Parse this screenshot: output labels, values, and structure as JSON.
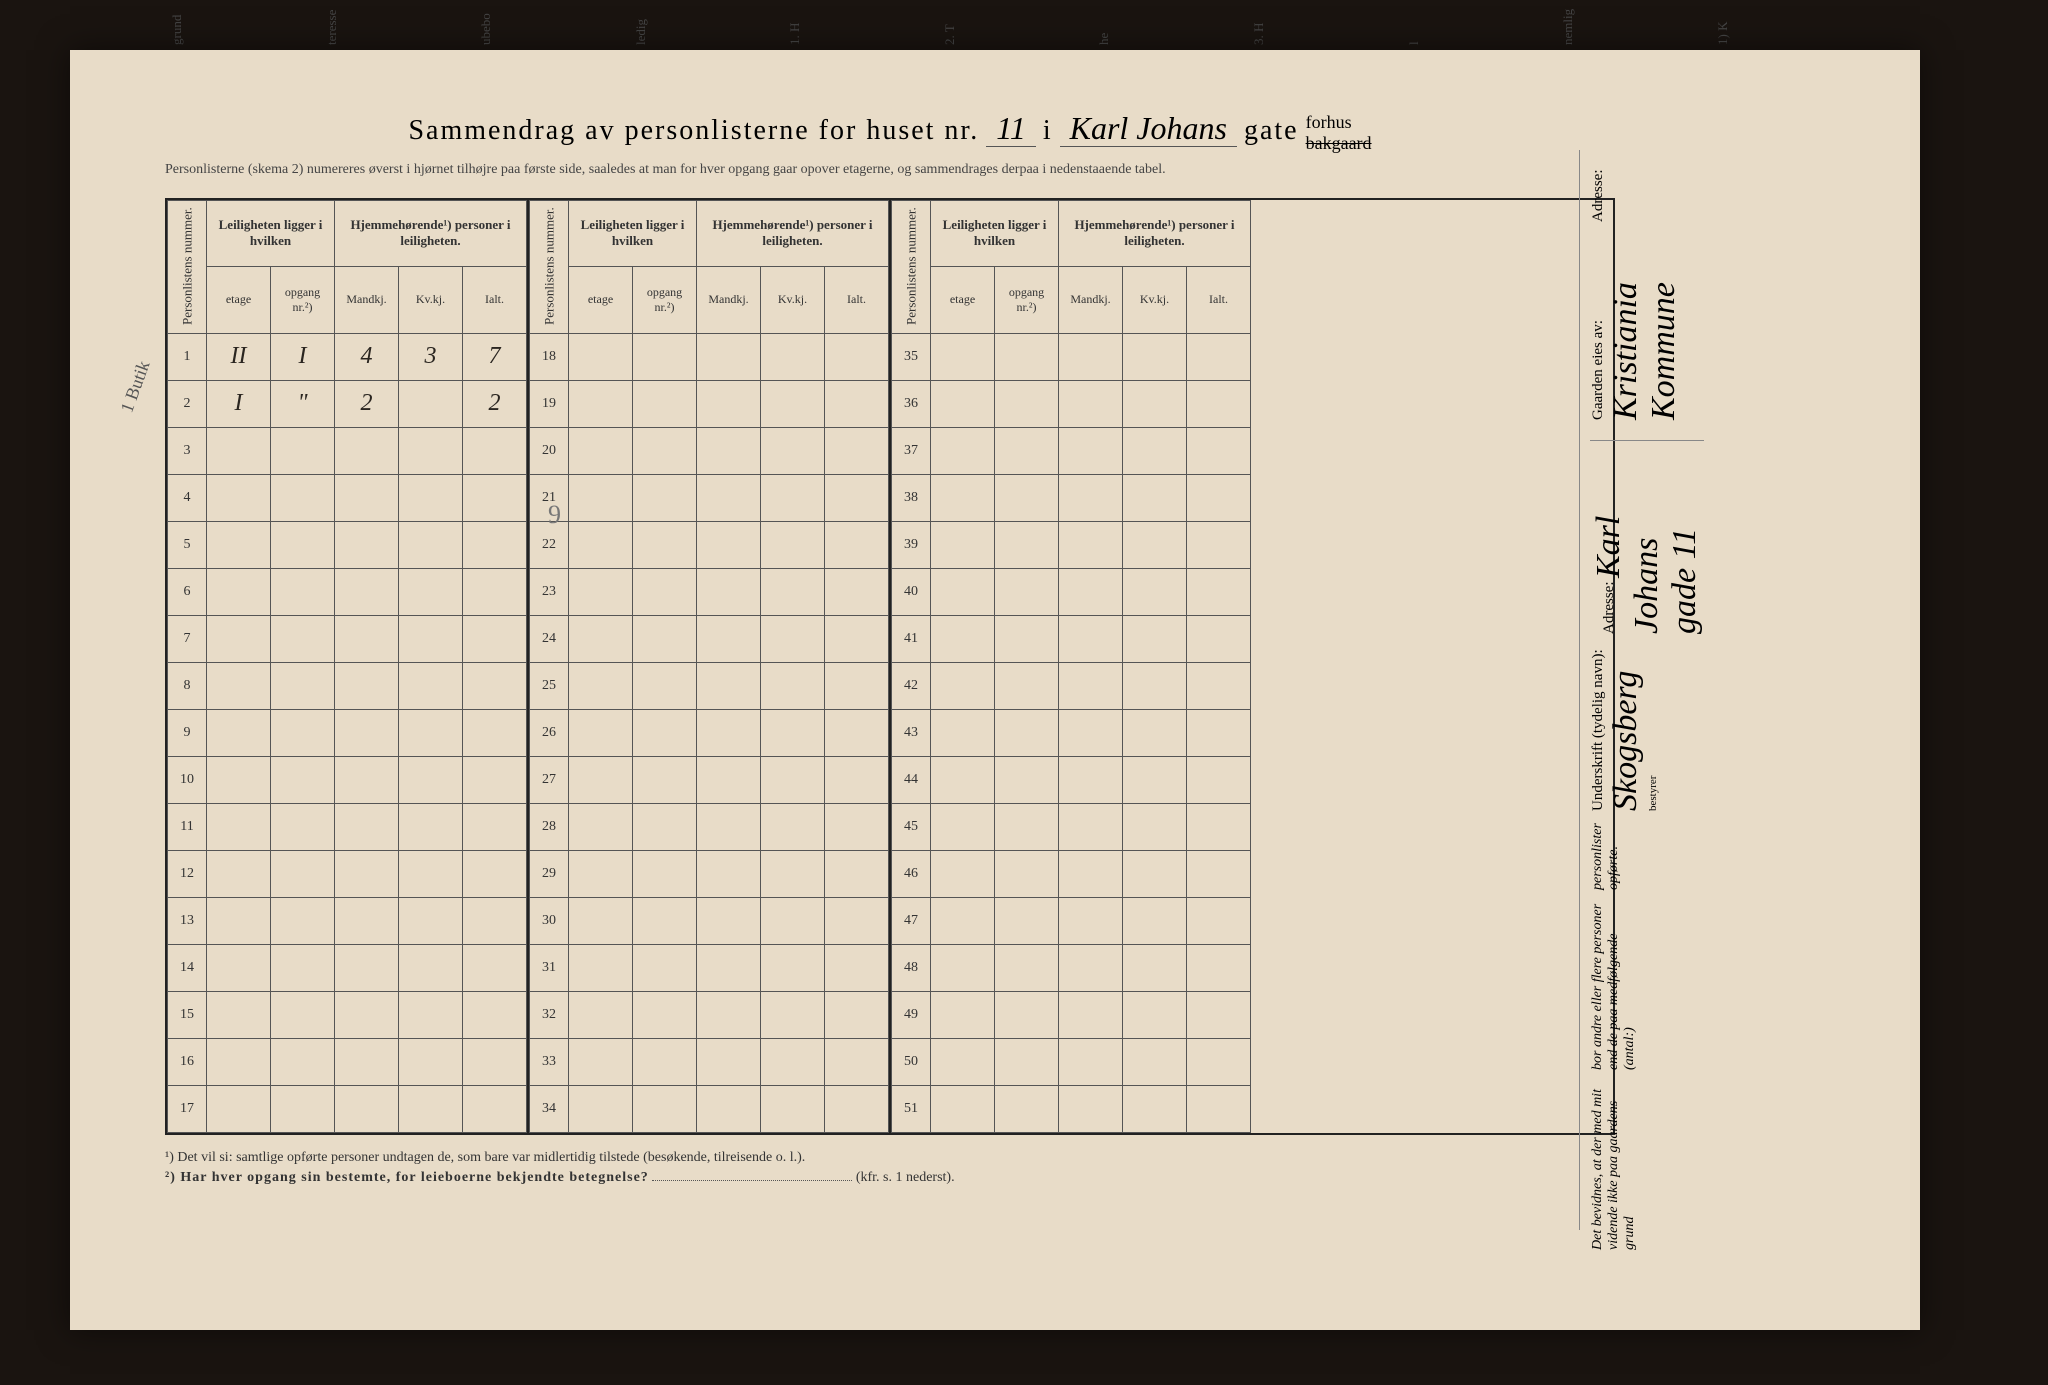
{
  "colors": {
    "paper": "#e8dcc8",
    "ink": "#222222",
    "handwriting": "#2a2520",
    "faint_pencil": "#888888",
    "background": "#1a1410"
  },
  "top_fragments": [
    "grund",
    "teresse",
    "ubebo",
    "ledig",
    "1. H",
    "2. T",
    "he",
    "3. H",
    "l",
    "nemlig",
    "1) K"
  ],
  "header": {
    "title_prefix": "Sammendrag av personlisterne for huset nr.",
    "house_number": "11",
    "i": "i",
    "street_name": "Karl Johans",
    "gate": "gate",
    "forhus": "forhus",
    "bakgaard": "bakgaard",
    "subtitle": "Personlisterne (skema 2) numereres øverst i hjørnet tilhøjre paa første side, saaledes at man for hver opgang gaar opover etagerne, og sammendrages derpaa i nedenstaaende tabel."
  },
  "table": {
    "col_personlistens": "Personlistens nummer.",
    "col_leiligheten": "Leiligheten ligger i hvilken",
    "col_hjemme": "Hjemmehørende¹) personer i leiligheten.",
    "sub_etage": "etage",
    "sub_opgang": "opgang nr.²)",
    "sub_mandkj": "Mandkj.",
    "sub_kvkj": "Kv.kj.",
    "sub_ialt": "Ialt.",
    "sections": [
      {
        "start": 1,
        "end": 17
      },
      {
        "start": 18,
        "end": 34
      },
      {
        "start": 35,
        "end": 51
      }
    ],
    "data_rows": [
      {
        "num": 1,
        "etage": "II",
        "opgang": "I",
        "mandkj": "4",
        "kvkj": "3",
        "ialt": "7"
      },
      {
        "num": 2,
        "etage": "I",
        "opgang": "\"",
        "mandkj": "2",
        "kvkj": "",
        "ialt": "2"
      }
    ],
    "pencil_sum": "9",
    "margin_note_left": "1 Butik"
  },
  "footnotes": {
    "f1": "¹) Det vil si: samtlige opførte personer undtagen de, som bare var midlertidig tilstede (besøkende, tilreisende o. l.).",
    "f2_label": "²) Har hver opgang sin bestemte, for leieboerne bekjendte betegnelse?",
    "f2_ref": "(kfr. s. 1 nederst)."
  },
  "right_panel": {
    "attest_line1": "Det bevidnes, at der med mit vidende ikke paa gaardens grund",
    "attest_line2": "bor andre eller flere personer end de paa medfølgende (antal:)",
    "attest_line3": "personlister opførte.",
    "underskrift_label": "Underskrift (tydelig navn):",
    "underskrift_value": "Skogsberg",
    "bestyrer": "bestyrer",
    "adresse_label": "Adresse:",
    "adresse_value": "Karl Johans gade 11",
    "gaarden_label": "Gaarden eies av:",
    "gaarden_value": "Kristiania Kommune",
    "adresse2_label": "Adresse:"
  }
}
